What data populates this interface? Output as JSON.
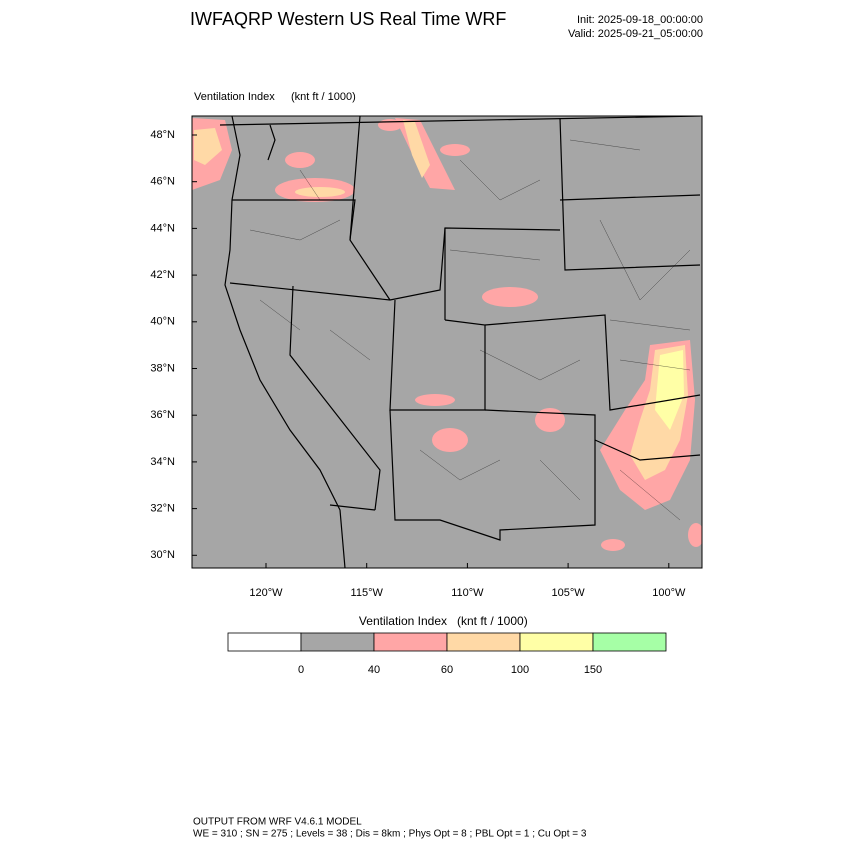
{
  "header": {
    "title": "IWFAQRP Western US Real Time WRF",
    "init": "Init: 2025-09-18_00:00:00",
    "valid": "Valid: 2025-09-21_05:00:00"
  },
  "map": {
    "field_label": "Ventilation Index",
    "units": "(knt ft / 1000)",
    "lat_labels": [
      "48°N",
      "46°N",
      "44°N",
      "42°N",
      "40°N",
      "38°N",
      "36°N",
      "34°N",
      "32°N",
      "30°N"
    ],
    "lon_labels": [
      "120°W",
      "115°W",
      "110°W",
      "105°W",
      "100°W"
    ]
  },
  "colorbar": {
    "title": "Ventilation Index",
    "units": "(knt ft / 1000)",
    "colors": [
      "#ffffff",
      "#a6a6a6",
      "#ffa6a6",
      "#ffd9a6",
      "#ffffa6",
      "#a6ffa6"
    ],
    "labels": [
      "0",
      "40",
      "60",
      "100",
      "150"
    ]
  },
  "footer": {
    "line1": "OUTPUT FROM WRF V4.6.1 MODEL",
    "line2": "WE = 310 ; SN = 275 ; Levels = 38 ; Dis = 8km ; Phys Opt = 8 ; PBL Opt = 1 ; Cu Opt = 3"
  }
}
